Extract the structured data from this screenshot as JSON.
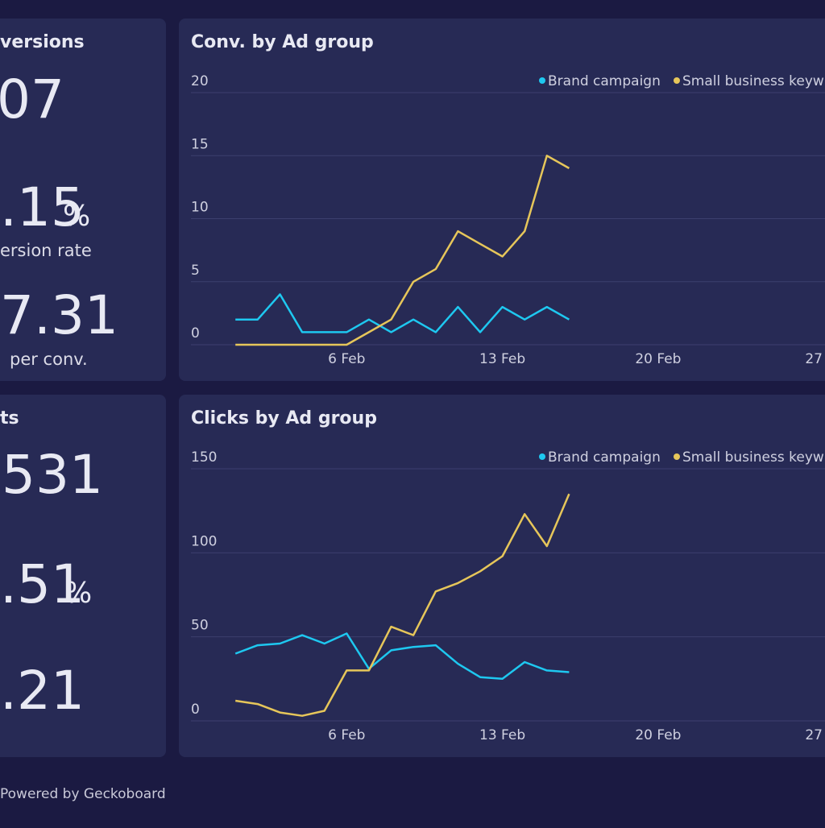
{
  "widgets": [
    {
      "title": "versions",
      "items": [
        {
          "value": "07"
        },
        {
          "value": ".15",
          "unit": "%",
          "label": "ersion rate"
        },
        {
          "value": "7.31",
          "label": "per conv."
        }
      ]
    },
    {
      "title": "ts",
      "items": [
        {
          "value": "531"
        },
        {
          "value": ".51",
          "unit": "%"
        },
        {
          "value": ".21"
        }
      ]
    }
  ],
  "footer": "Powered by Geckoboard",
  "chart_data": [
    {
      "type": "line",
      "title": "Conv. by Ad group",
      "legend": "top-right",
      "grid": true,
      "x": [
        1,
        2,
        3,
        4,
        5,
        6,
        7,
        8,
        9,
        10,
        11,
        12,
        13,
        14,
        15,
        16
      ],
      "xlim": [
        -1,
        27.5
      ],
      "xticks": [
        {
          "value": 6,
          "label": "6 Feb"
        },
        {
          "value": 13,
          "label": "13 Feb"
        },
        {
          "value": 20,
          "label": "20 Feb"
        },
        {
          "value": 27,
          "label": "27"
        }
      ],
      "ylim": [
        0,
        20
      ],
      "yticks": [
        0,
        5,
        10,
        15,
        20
      ],
      "series": [
        {
          "name": "Brand campaign",
          "color": "#1ec8f0",
          "values": [
            2,
            2,
            4,
            1,
            1,
            1,
            2,
            1,
            2,
            1,
            3,
            1,
            3,
            2,
            3,
            2
          ]
        },
        {
          "name": "Small business keyw",
          "color": "#e6c65a",
          "values": [
            0,
            0,
            0,
            0,
            0,
            0,
            1,
            2,
            5,
            6,
            9,
            8,
            7,
            9,
            15,
            14
          ]
        }
      ]
    },
    {
      "type": "line",
      "title": "Clicks by Ad group",
      "legend": "top-right",
      "grid": true,
      "x": [
        1,
        2,
        3,
        4,
        5,
        6,
        7,
        8,
        9,
        10,
        11,
        12,
        13,
        14,
        15,
        16
      ],
      "xlim": [
        -1,
        27.5
      ],
      "xticks": [
        {
          "value": 6,
          "label": "6 Feb"
        },
        {
          "value": 13,
          "label": "13 Feb"
        },
        {
          "value": 20,
          "label": "20 Feb"
        },
        {
          "value": 27,
          "label": "27"
        }
      ],
      "ylim": [
        0,
        150
      ],
      "yticks": [
        0,
        50,
        100,
        150
      ],
      "series": [
        {
          "name": "Brand campaign",
          "color": "#1ec8f0",
          "values": [
            40,
            45,
            46,
            51,
            46,
            52,
            31,
            42,
            44,
            45,
            34,
            26,
            25,
            35,
            30,
            29
          ]
        },
        {
          "name": "Small business keyw",
          "color": "#e6c65a",
          "values": [
            12,
            10,
            5,
            3,
            6,
            30,
            30,
            56,
            51,
            77,
            82,
            89,
            98,
            123,
            104,
            135
          ]
        }
      ]
    }
  ]
}
